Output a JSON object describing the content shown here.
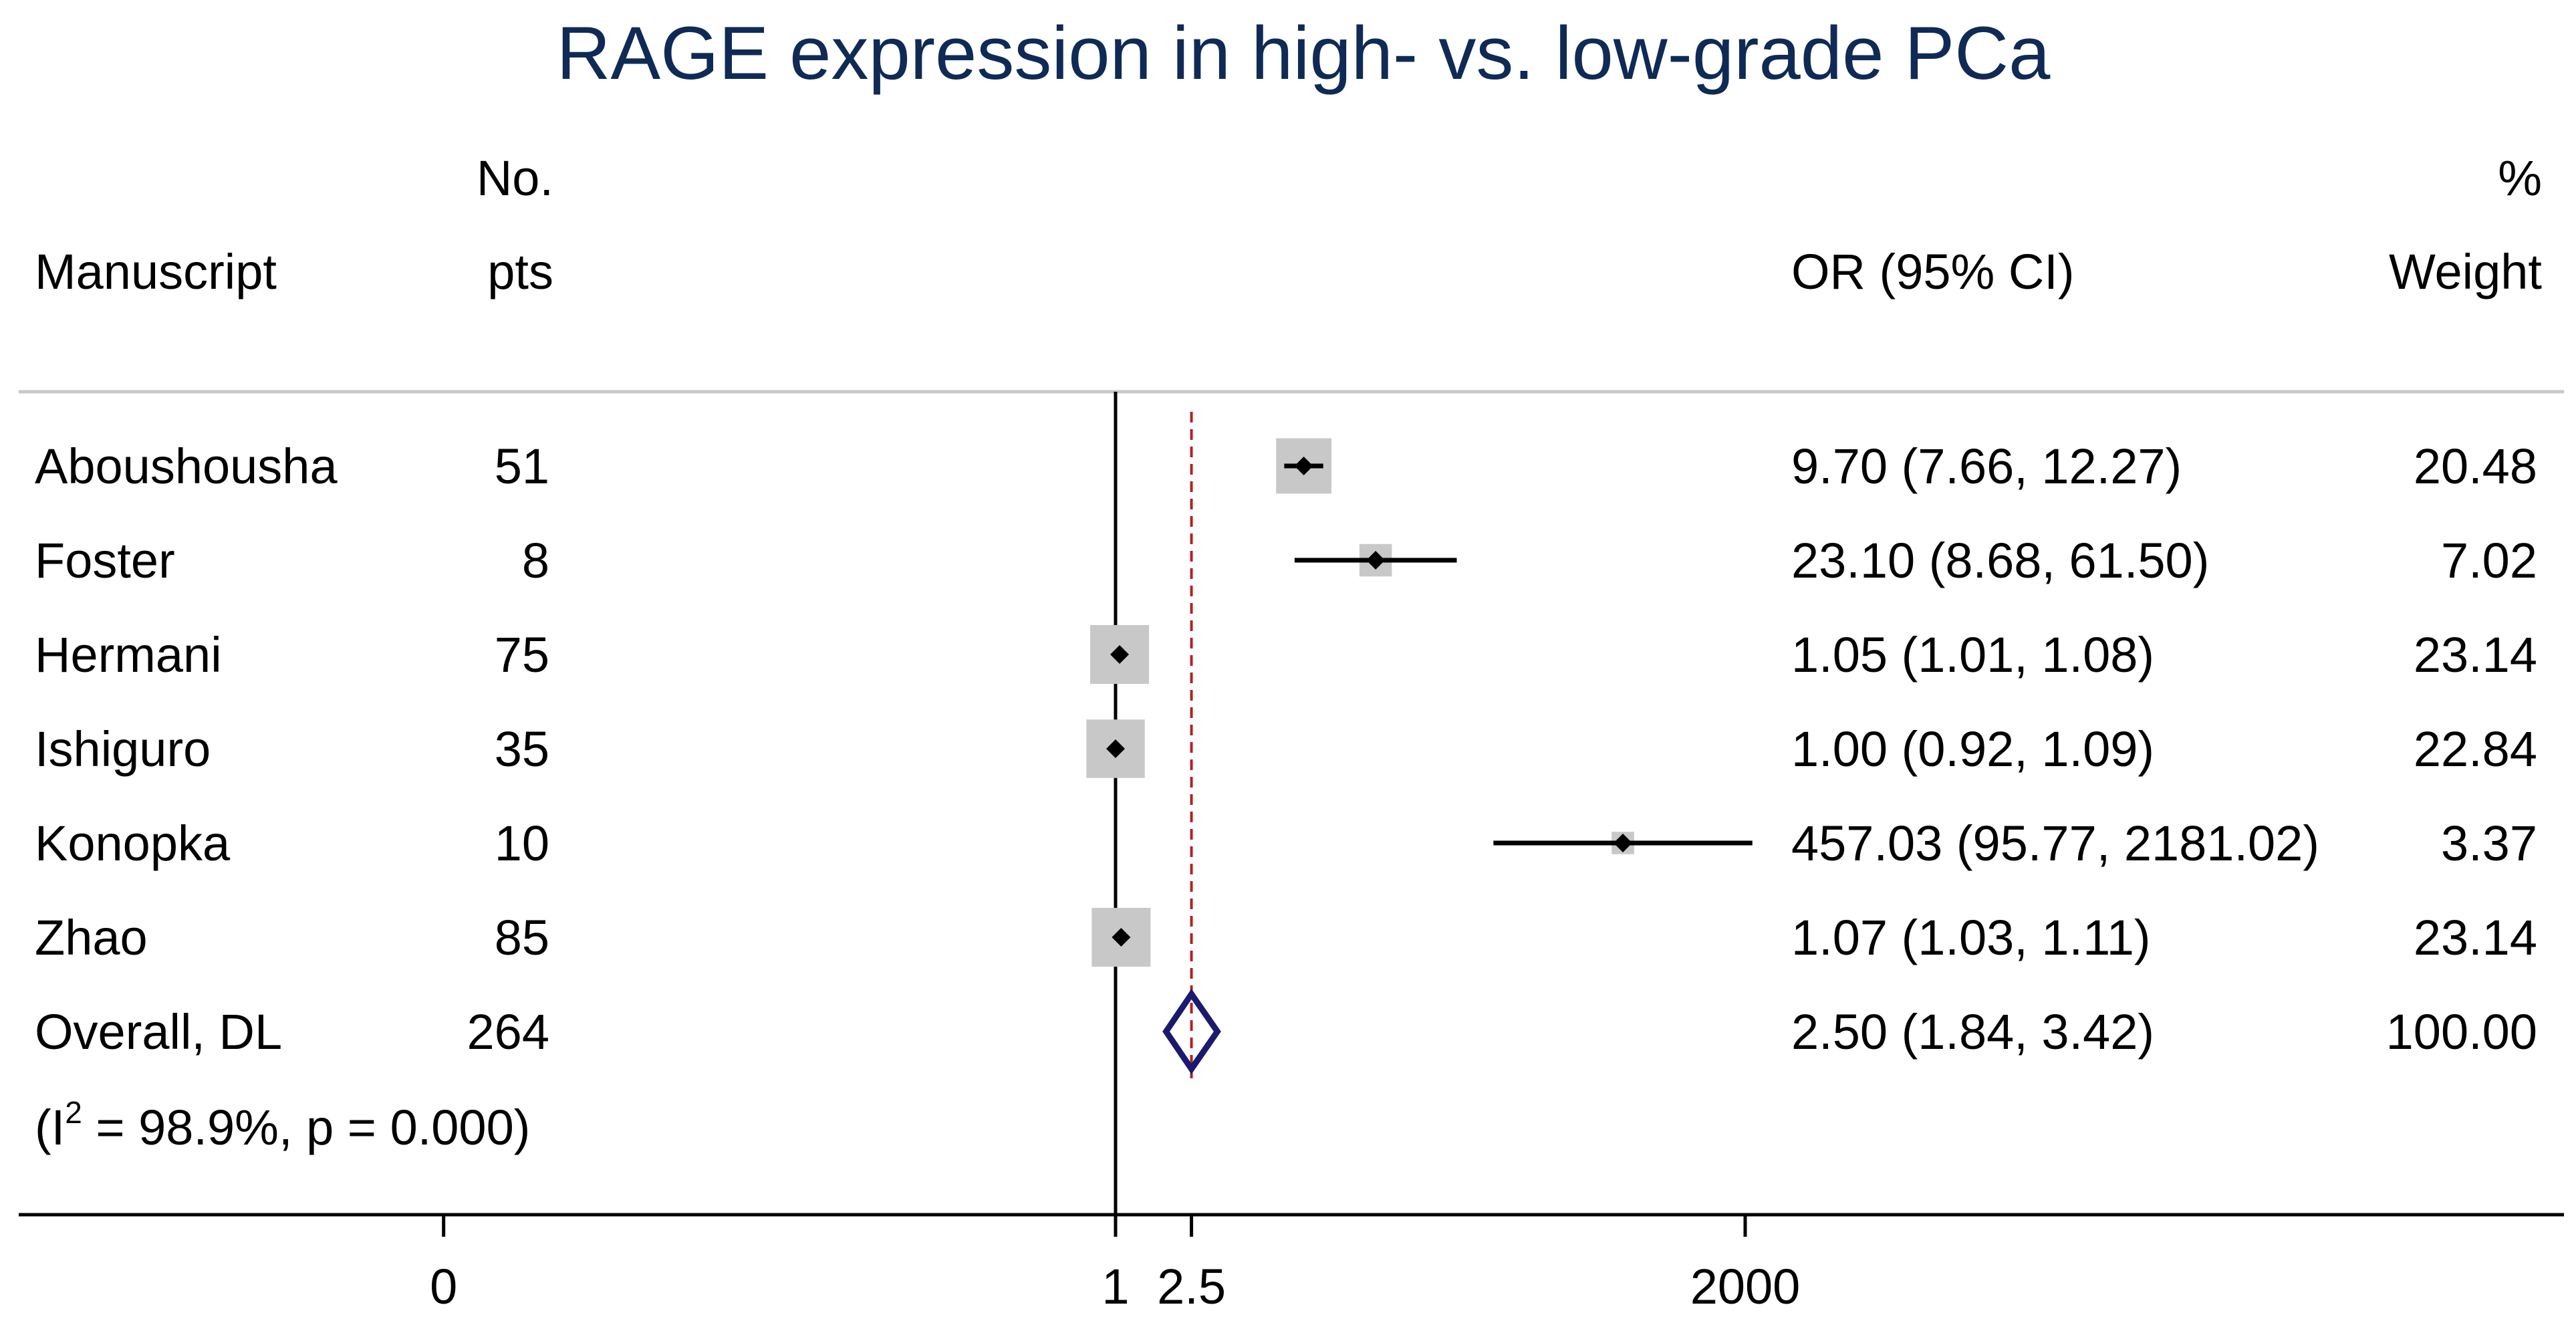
{
  "chart_data": {
    "type": "forest",
    "title": "RAGE expression in high- vs. low-grade PCa",
    "columns": {
      "study": "Manuscript",
      "n_line1": "No.",
      "n_line2": "pts",
      "effect": "OR (95% CI)",
      "weight_line1": "%",
      "weight_line2": "Weight"
    },
    "studies": [
      {
        "name": "Aboushousha",
        "n": "51",
        "or": 9.7,
        "lo": 7.66,
        "hi": 12.27,
        "ci_text": "9.70 (7.66, 12.27)",
        "weight": 20.48,
        "weight_text": "20.48"
      },
      {
        "name": "Foster",
        "n": "8",
        "or": 23.1,
        "lo": 8.68,
        "hi": 61.5,
        "ci_text": "23.10 (8.68, 61.50)",
        "weight": 7.02,
        "weight_text": "7.02"
      },
      {
        "name": "Hermani",
        "n": "75",
        "or": 1.05,
        "lo": 1.01,
        "hi": 1.08,
        "ci_text": "1.05 (1.01, 1.08)",
        "weight": 23.14,
        "weight_text": "23.14"
      },
      {
        "name": "Ishiguro",
        "n": "35",
        "or": 1.0,
        "lo": 0.92,
        "hi": 1.09,
        "ci_text": "1.00 (0.92, 1.09)",
        "weight": 22.84,
        "weight_text": "22.84"
      },
      {
        "name": "Konopka",
        "n": "10",
        "or": 457.03,
        "lo": 95.77,
        "hi": 2181.02,
        "ci_text": "457.03 (95.77, 2181.02)",
        "weight": 3.37,
        "weight_text": "3.37"
      },
      {
        "name": "Zhao",
        "n": "85",
        "or": 1.07,
        "lo": 1.03,
        "hi": 1.11,
        "ci_text": "1.07 (1.03, 1.11)",
        "weight": 23.14,
        "weight_text": "23.14"
      }
    ],
    "overall": {
      "name": "Overall, DL",
      "n": "264",
      "or": 2.5,
      "lo": 1.84,
      "hi": 3.42,
      "ci_text": "2.50 (1.84, 3.42)",
      "weight_text": "100.00"
    },
    "heterogeneity": {
      "prefix": "(I",
      "superscript": "2",
      "suffix": " = 98.9%, p = 0.000)"
    },
    "x_axis": {
      "scale": "log",
      "ticks": [
        {
          "value": 0.0003,
          "label": "0"
        },
        {
          "value": 1,
          "label": "1"
        },
        {
          "value": 2.5,
          "label": "2.5"
        },
        {
          "value": 2000,
          "label": "2000"
        }
      ]
    },
    "null_line": 1,
    "overall_line": 2.5,
    "colors": {
      "title": "#0f2a55",
      "diamond": "#1a1a6e",
      "overall_line": "#b22222",
      "weight_box": "#c8c8c8",
      "text": "#000000"
    }
  }
}
